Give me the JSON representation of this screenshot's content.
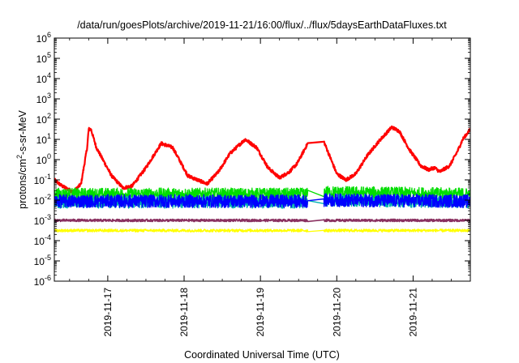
{
  "chart_data": {
    "type": "line",
    "title": "/data/run/goesPlots/archive/2019-11-21/16:00/flux/../flux/5daysEarthDataFluxes.txt",
    "xlabel": "Coordinated Universal Time (UTC)",
    "ylabel": "protons/cm²-s-sr-MeV",
    "ylabel_parts": [
      "protons/cm",
      "2",
      "-s-sr-MeV"
    ],
    "yscale": "log",
    "ylim_exp": [
      -6,
      6
    ],
    "xlim_days": [
      16.3,
      21.75
    ],
    "xticks": [
      {
        "label": "2019-11-17",
        "day": 17
      },
      {
        "label": "2019-11-18",
        "day": 18
      },
      {
        "label": "2019-11-19",
        "day": 19
      },
      {
        "label": "2019-11-20",
        "day": 20
      },
      {
        "label": "2019-11-21",
        "day": 21
      }
    ],
    "yticks": [
      {
        "base": "10",
        "exp": "-6",
        "value": -6
      },
      {
        "base": "10",
        "exp": "-5",
        "value": -5
      },
      {
        "base": "10",
        "exp": "-4",
        "value": -4
      },
      {
        "base": "10",
        "exp": "-3",
        "value": -3
      },
      {
        "base": "10",
        "exp": "-2",
        "value": -2
      },
      {
        "base": "10",
        "exp": "-1",
        "value": -1
      },
      {
        "base": "10",
        "exp": "0",
        "value": 0
      },
      {
        "base": "10",
        "exp": "1",
        "value": 1
      },
      {
        "base": "10",
        "exp": "2",
        "value": 2
      },
      {
        "base": "10",
        "exp": "3",
        "value": 3
      },
      {
        "base": "10",
        "exp": "4",
        "value": 4
      },
      {
        "base": "10",
        "exp": "5",
        "value": 5
      },
      {
        "base": "10",
        "exp": "6",
        "value": 6
      }
    ],
    "grid": false,
    "legend": "none",
    "gap_days": [
      19.62,
      19.83
    ],
    "series": [
      {
        "color": "#ff0000",
        "width": 2.2,
        "noise": 0.08,
        "points": [
          [
            16.3,
            -1.0
          ],
          [
            16.4,
            -1.3
          ],
          [
            16.55,
            -1.6
          ],
          [
            16.65,
            -1.2
          ],
          [
            16.73,
            0.6
          ],
          [
            16.75,
            1.5
          ],
          [
            16.78,
            1.5
          ],
          [
            16.85,
            0.6
          ],
          [
            17.05,
            -0.8
          ],
          [
            17.2,
            -1.4
          ],
          [
            17.32,
            -1.3
          ],
          [
            17.5,
            -0.4
          ],
          [
            17.7,
            0.8
          ],
          [
            17.85,
            0.6
          ],
          [
            18.05,
            -0.8
          ],
          [
            18.3,
            -1.2
          ],
          [
            18.45,
            -0.6
          ],
          [
            18.6,
            0.3
          ],
          [
            18.8,
            1.0
          ],
          [
            18.95,
            0.6
          ],
          [
            19.1,
            -0.4
          ],
          [
            19.25,
            -0.9
          ],
          [
            19.38,
            -0.6
          ],
          [
            19.48,
            -0.2
          ],
          [
            19.62,
            0.8
          ],
          [
            19.83,
            0.9
          ],
          [
            20.0,
            -0.7
          ],
          [
            20.12,
            -1.0
          ],
          [
            20.25,
            -0.7
          ],
          [
            20.4,
            0.2
          ],
          [
            20.55,
            0.9
          ],
          [
            20.72,
            1.6
          ],
          [
            20.82,
            1.4
          ],
          [
            20.95,
            0.5
          ],
          [
            21.1,
            -0.3
          ],
          [
            21.2,
            -0.5
          ],
          [
            21.28,
            -0.4
          ],
          [
            21.35,
            -0.6
          ],
          [
            21.48,
            -0.3
          ],
          [
            21.58,
            0.4
          ],
          [
            21.65,
            1.0
          ],
          [
            21.75,
            1.5
          ]
        ]
      },
      {
        "color": "#00dd00",
        "width": 1.3,
        "noise": 0.3,
        "points": [
          [
            16.3,
            -1.7
          ],
          [
            19.62,
            -1.7
          ],
          [
            19.83,
            -1.6
          ],
          [
            21.75,
            -1.7
          ]
        ]
      },
      {
        "color": "#00b0b0",
        "width": 1.3,
        "noise": 0.3,
        "points": [
          [
            16.3,
            -2.1
          ],
          [
            19.62,
            -2.1
          ],
          [
            19.83,
            -2.0
          ],
          [
            21.75,
            -2.1
          ]
        ]
      },
      {
        "color": "#0000ff",
        "width": 1.4,
        "noise": 0.32,
        "points": [
          [
            16.3,
            -2.05
          ],
          [
            19.62,
            -2.05
          ],
          [
            19.83,
            -2.0
          ],
          [
            21.75,
            -2.05
          ]
        ]
      },
      {
        "color": "#ffff00",
        "width": 1.3,
        "noise": 0.07,
        "points": [
          [
            16.3,
            -3.5
          ],
          [
            19.62,
            -3.5
          ],
          [
            19.83,
            -3.5
          ],
          [
            21.75,
            -3.5
          ]
        ]
      },
      {
        "color": "#8a3060",
        "width": 1.6,
        "noise": 0.06,
        "points": [
          [
            16.3,
            -3.0
          ],
          [
            19.62,
            -3.0
          ],
          [
            19.83,
            -3.0
          ],
          [
            21.75,
            -3.0
          ]
        ]
      }
    ]
  }
}
